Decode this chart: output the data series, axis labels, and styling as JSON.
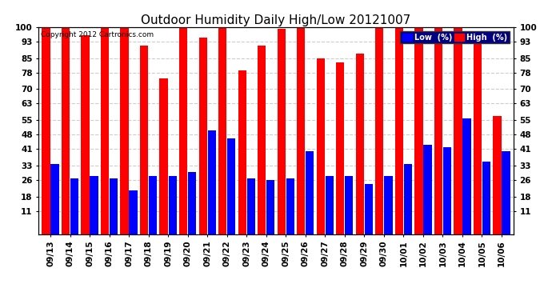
{
  "title": "Outdoor Humidity Daily High/Low 20121007",
  "copyright": "Copyright 2012 Cartronics.com",
  "categories": [
    "09/13",
    "09/14",
    "09/15",
    "09/16",
    "09/17",
    "09/18",
    "09/19",
    "09/20",
    "09/21",
    "09/22",
    "09/23",
    "09/24",
    "09/25",
    "09/26",
    "09/27",
    "09/28",
    "09/29",
    "09/30",
    "10/01",
    "10/02",
    "10/03",
    "10/04",
    "10/05",
    "10/06"
  ],
  "high_values": [
    100,
    100,
    96,
    100,
    100,
    91,
    75,
    100,
    95,
    100,
    79,
    91,
    99,
    100,
    85,
    83,
    87,
    100,
    100,
    100,
    100,
    100,
    94,
    57
  ],
  "low_values": [
    34,
    27,
    28,
    27,
    21,
    28,
    28,
    30,
    50,
    46,
    27,
    26,
    27,
    40,
    28,
    28,
    24,
    28,
    34,
    43,
    42,
    56,
    35,
    40
  ],
  "bar_color_high": "#ff0000",
  "bar_color_low": "#0000ff",
  "background_color": "#ffffff",
  "plot_bg_color": "#ffffff",
  "grid_color": "#cccccc",
  "yticks": [
    11,
    18,
    26,
    33,
    41,
    48,
    55,
    63,
    70,
    78,
    85,
    93,
    100
  ],
  "ymin": 11,
  "ymax": 100,
  "title_fontsize": 11,
  "tick_fontsize": 7.5,
  "legend_low_label": "Low  (%)",
  "legend_high_label": "High  (%)"
}
